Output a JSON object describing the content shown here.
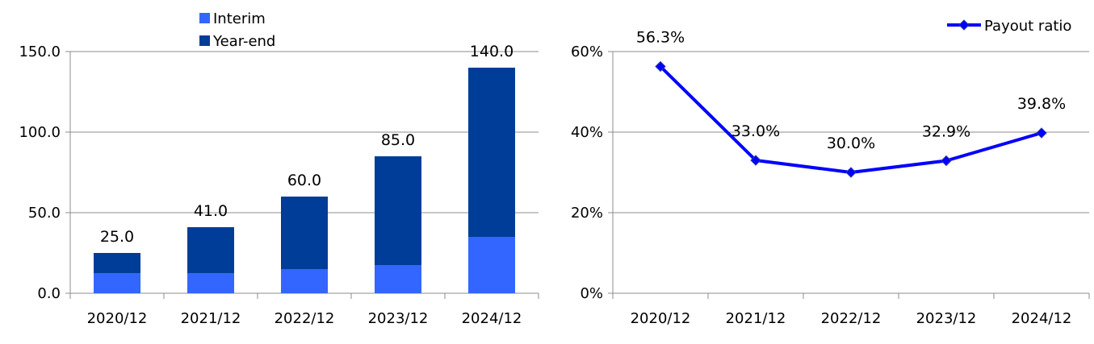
{
  "chart_data": [
    {
      "type": "bar",
      "stacked": true,
      "categories": [
        "2020/12",
        "2021/12",
        "2022/12",
        "2023/12",
        "2024/12"
      ],
      "series": [
        {
          "name": "Interim",
          "values": [
            12.5,
            12.5,
            15.0,
            17.5,
            35.0
          ],
          "color": "#3366FF"
        },
        {
          "name": "Year-end",
          "values": [
            12.5,
            28.5,
            45.0,
            67.5,
            105.0
          ],
          "color": "#003D99"
        }
      ],
      "totals": [
        "25.0",
        "41.0",
        "60.0",
        "85.0",
        "140.0"
      ],
      "yticks": [
        "0.0",
        "50.0",
        "100.0",
        "150.0"
      ],
      "ylim": [
        0,
        150
      ],
      "grid": true,
      "legend_position": "top-left"
    },
    {
      "type": "line",
      "categories": [
        "2020/12",
        "2021/12",
        "2022/12",
        "2023/12",
        "2024/12"
      ],
      "series": [
        {
          "name": "Payout ratio",
          "values": [
            56.3,
            33.0,
            30.0,
            32.9,
            39.8
          ],
          "color": "#0000FF"
        }
      ],
      "data_labels": [
        "56.3%",
        "33.0%",
        "30.0%",
        "32.9%",
        "39.8%"
      ],
      "yticks": [
        "0%",
        "20%",
        "40%",
        "60%"
      ],
      "ylim": [
        0,
        60
      ],
      "grid": true,
      "legend_position": "top-right"
    }
  ]
}
